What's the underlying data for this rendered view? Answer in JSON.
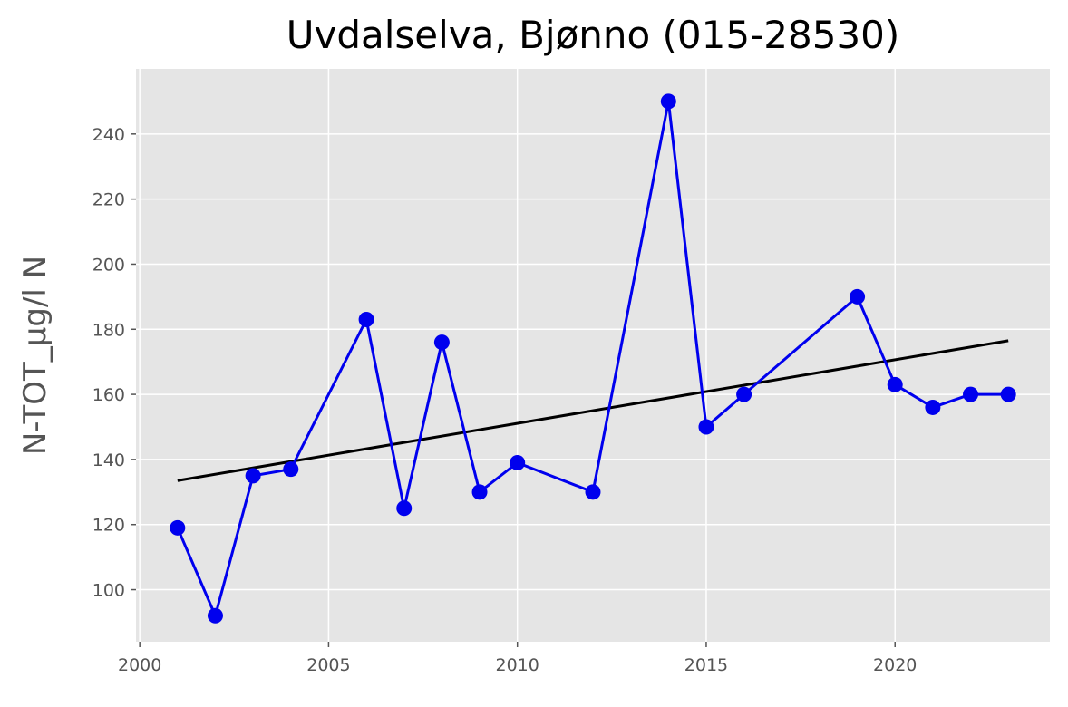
{
  "chart_data": {
    "type": "line",
    "title": "Uvdalselva, Bjønno (015-28530)",
    "xlabel": "",
    "ylabel": "N-TOT_µg/l N",
    "xlim": [
      1999.9,
      2024.1
    ],
    "ylim": [
      84,
      260
    ],
    "x_ticks": [
      2000,
      2005,
      2010,
      2015,
      2020
    ],
    "y_ticks": [
      100,
      120,
      140,
      160,
      180,
      200,
      220,
      240
    ],
    "grid": true,
    "series": [
      {
        "color": "#0000ee",
        "marker": "circle",
        "x": [
          2001,
          2002,
          2003,
          2004,
          2006,
          2007,
          2008,
          2009,
          2010,
          2012,
          2014,
          2015,
          2016,
          2019,
          2020,
          2021,
          2022,
          2023
        ],
        "y": [
          119,
          92,
          135,
          137,
          183,
          125,
          176,
          130,
          139,
          130,
          250,
          150,
          160,
          190,
          163,
          156,
          160,
          160
        ]
      }
    ],
    "trend_line": {
      "color": "#000000",
      "x": [
        2001,
        2023
      ],
      "y": [
        133.5,
        176.5
      ]
    },
    "plot_background": "#e5e5e5",
    "grid_color": "#ffffff"
  }
}
